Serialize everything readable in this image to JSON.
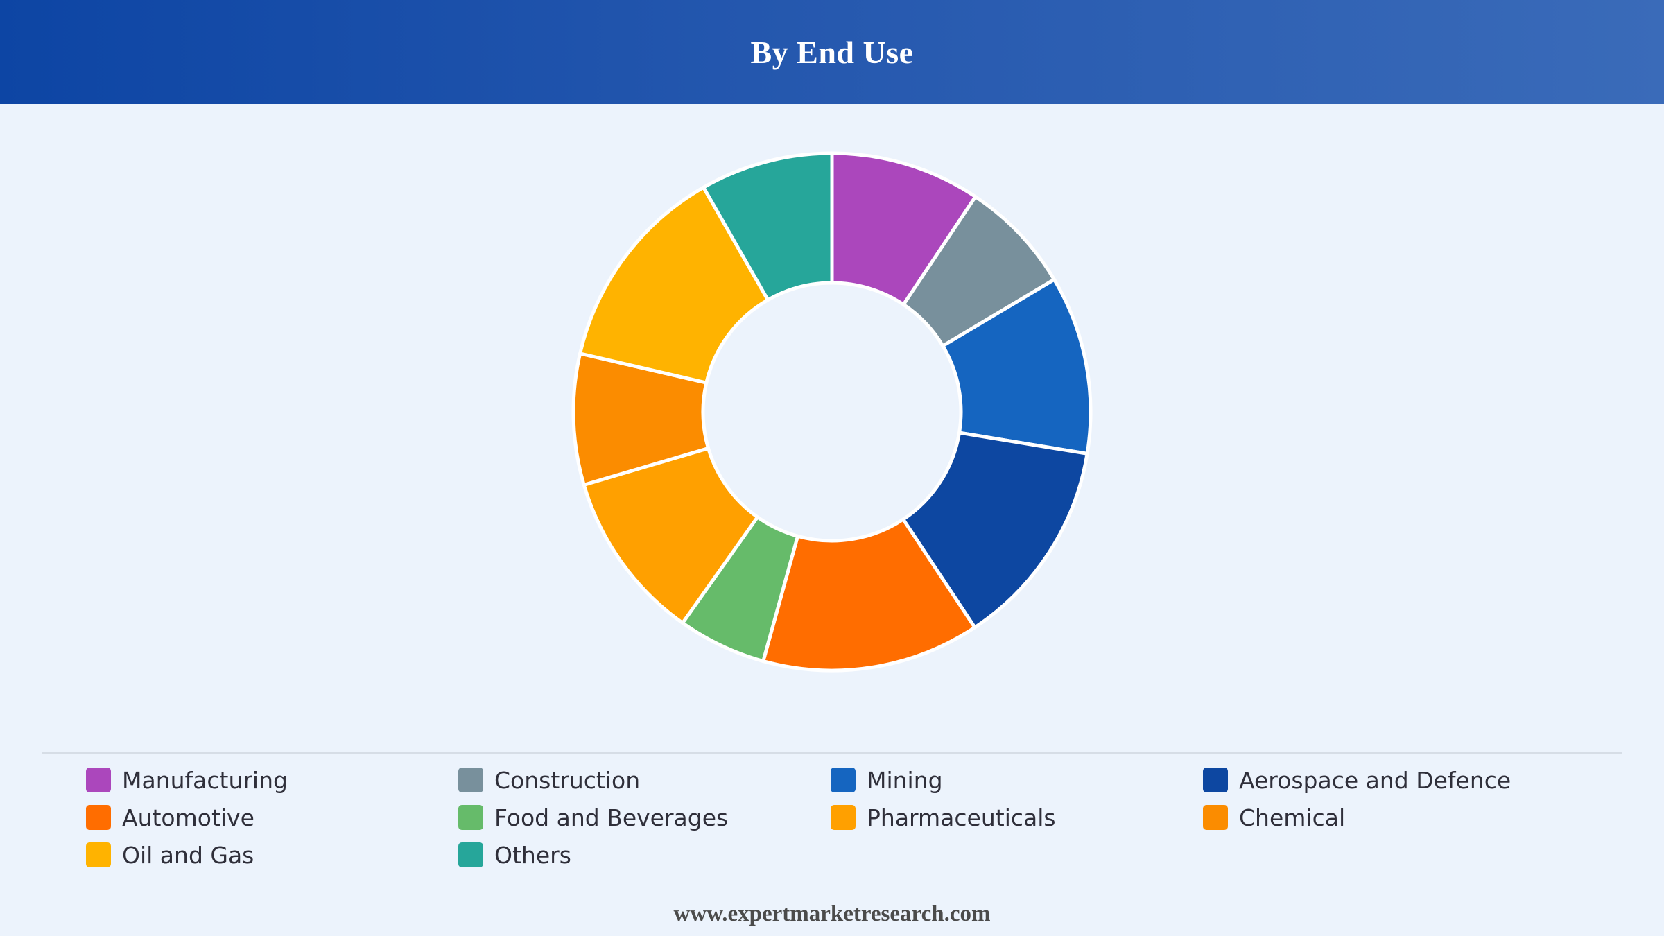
{
  "header": {
    "title": "By End Use"
  },
  "chart_data": {
    "type": "pie",
    "style": "donut",
    "title": "By End Use",
    "categories": [
      "Manufacturing",
      "Construction",
      "Mining",
      "Aerospace and Defence",
      "Automotive",
      "Food and Beverages",
      "Pharmaceuticals",
      "Chemical",
      "Oil and Gas",
      "Others"
    ],
    "values": [
      9.5,
      7.2,
      11.3,
      13.3,
      13.8,
      5.6,
      10.8,
      8.3,
      13.3,
      8.4
    ],
    "unit": "%",
    "colors": [
      "#ab47bc",
      "#78909c",
      "#1565c0",
      "#0d47a1",
      "#ff6d00",
      "#66bb6a",
      "#ffa000",
      "#fb8c00",
      "#ffb300",
      "#26a69a"
    ],
    "legend_position": "bottom",
    "start_angle": "top, clockwise"
  },
  "footer": {
    "source": "www.expertmarketresearch.com"
  }
}
